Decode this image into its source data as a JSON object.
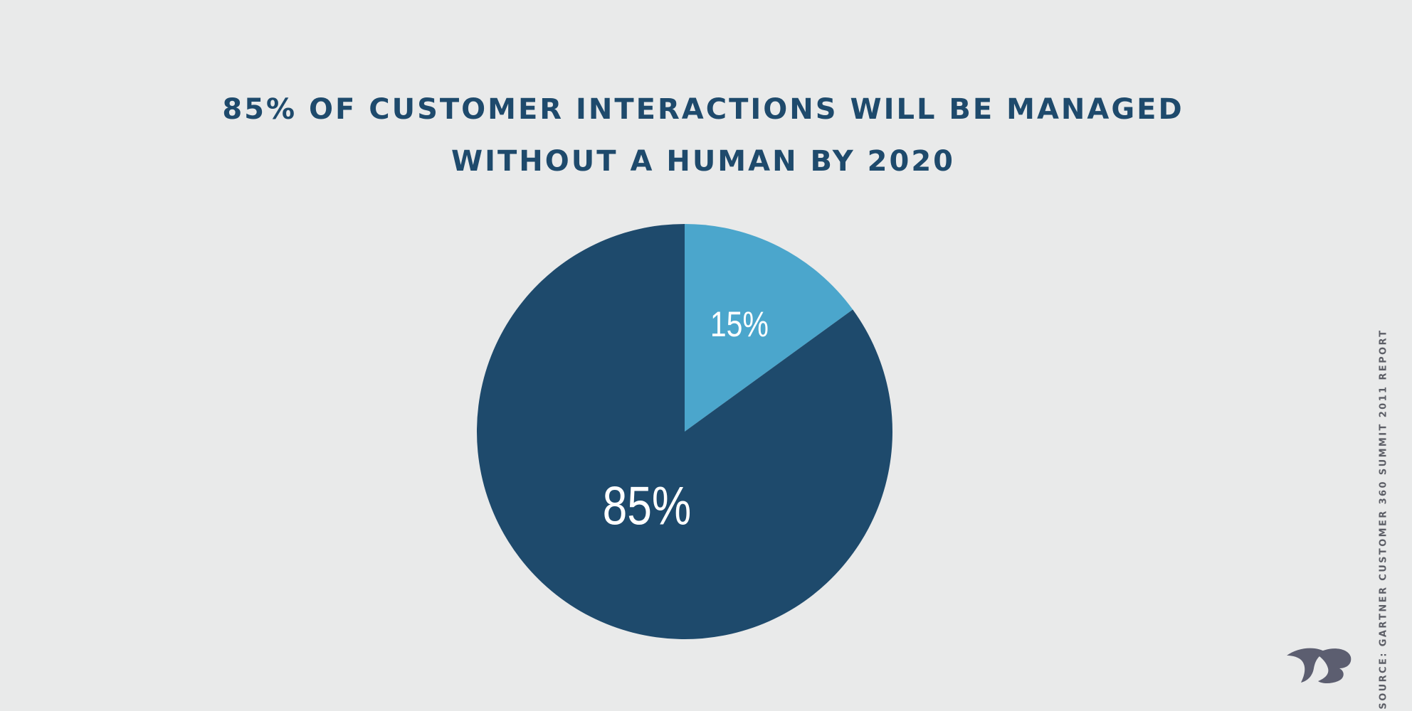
{
  "chart_data": {
    "type": "pie",
    "title_lines": [
      "85% OF CUSTOMER INTERACTIONS WILL BE MANAGED",
      "WITHOUT A HUMAN BY 2020"
    ],
    "slices": [
      {
        "label": "15%",
        "value": 15,
        "color": "#4BA6CC"
      },
      {
        "label": "85%",
        "value": 85,
        "color": "#1E4A6C"
      }
    ],
    "source": "SOURCE: GARTNER CUSTOMER 360 SUMMIT 2011 REPORT"
  },
  "logo": {
    "icon": "brand-logo-icon",
    "color": "#5C5E70"
  }
}
